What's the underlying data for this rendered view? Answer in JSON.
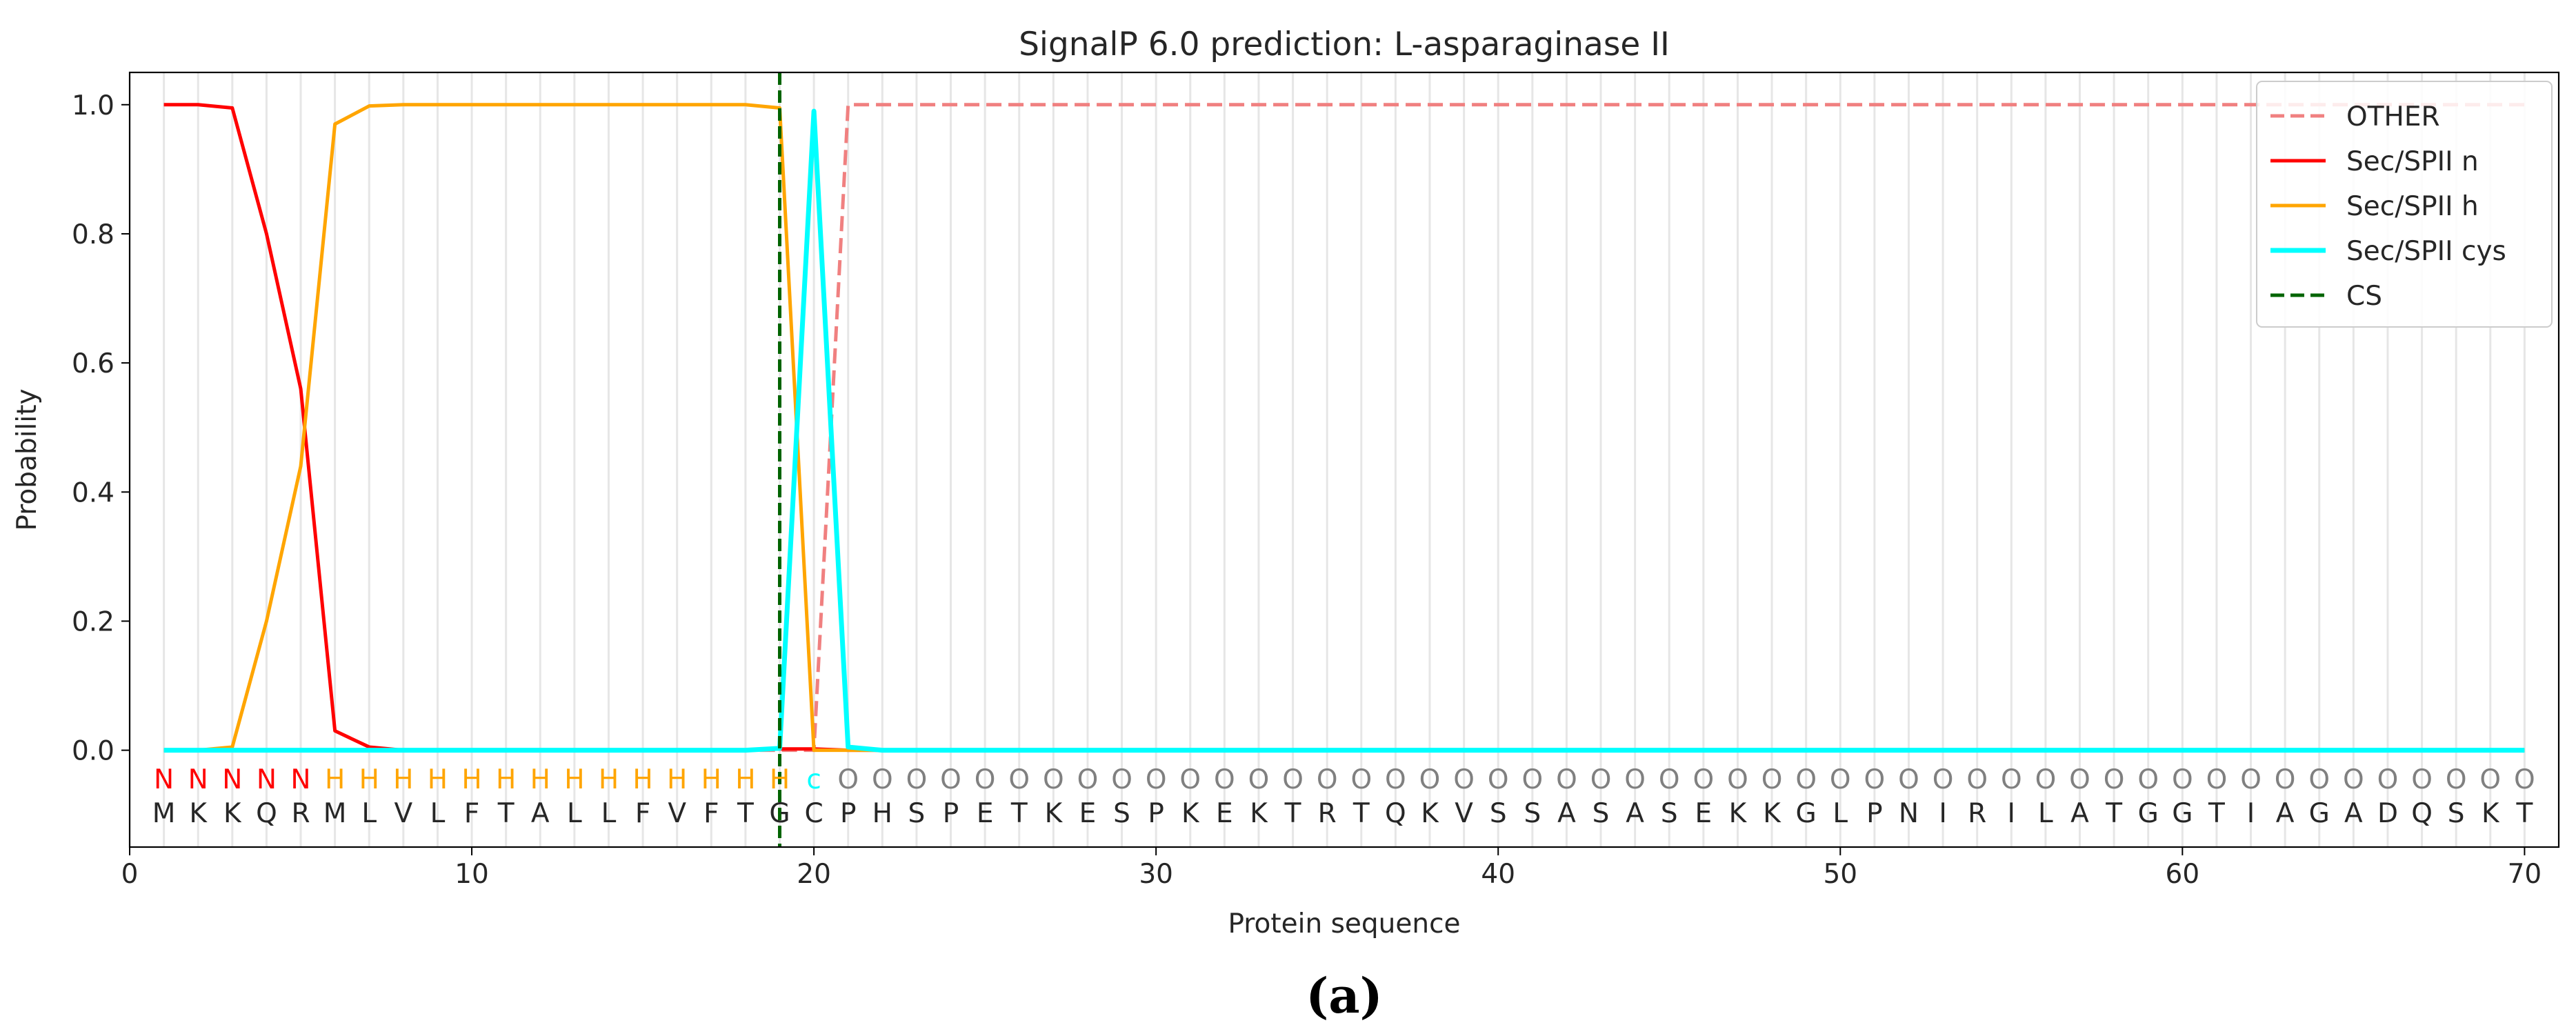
{
  "caption": "(a)",
  "colors": {
    "other": "#f08080",
    "n": "#ff0000",
    "h": "#ffa500",
    "cys": "#00ffff",
    "cs": "#006400",
    "seq_gray": "#808080",
    "text": "#262626"
  },
  "chart_data": {
    "type": "line",
    "title": "SignalP 6.0 prediction: L-asparaginase II",
    "xlabel": "Protein sequence",
    "ylabel": "Probability",
    "xlim": [
      0,
      71
    ],
    "ylim": [
      -0.15,
      1.05
    ],
    "xticks": [
      0,
      10,
      20,
      30,
      40,
      50,
      60,
      70
    ],
    "yticks": [
      0.0,
      0.2,
      0.4,
      0.6,
      0.8,
      1.0
    ],
    "xtick_labels": [
      "0",
      "10",
      "20",
      "30",
      "40",
      "50",
      "60",
      "70"
    ],
    "ytick_labels": [
      "0.0",
      "0.2",
      "0.4",
      "0.6",
      "0.8",
      "1.0"
    ],
    "vertical_grid": true,
    "legend_position": "top-right",
    "sequence": "MKKQRMLVLFTALLFVFTGCPHSPETKESPKEKTRTQKVSSASASEKKGLPNIRILATGGTIAGADQSKT",
    "region_labels": "NNNNNHHHHHHHHHHHHHHcOOOOOOOOOOOOOOOOOOOOOOOOOOOOOOOOOOOOOOOOOOOOOOOOOO",
    "cleavage_site": 19,
    "series": [
      {
        "name": "OTHER",
        "color": "#f08080",
        "dashed": true,
        "x": [
          1,
          2,
          3,
          4,
          5,
          6,
          7,
          8,
          9,
          10,
          11,
          12,
          13,
          14,
          15,
          16,
          17,
          18,
          19,
          20,
          21,
          22,
          70
        ],
        "y": [
          0,
          0,
          0,
          0,
          0,
          0,
          0,
          0,
          0,
          0,
          0,
          0,
          0,
          0,
          0,
          0,
          0,
          0,
          0,
          0,
          1,
          1,
          1
        ]
      },
      {
        "name": "Sec/SPII n",
        "color": "#ff0000",
        "dashed": false,
        "x": [
          1,
          2,
          3,
          4,
          5,
          6,
          7,
          8,
          18,
          19,
          20,
          21,
          70
        ],
        "y": [
          1,
          1,
          0.995,
          0.8,
          0.56,
          0.03,
          0.005,
          0,
          0,
          0.002,
          0.002,
          0,
          0
        ]
      },
      {
        "name": "Sec/SPII h",
        "color": "#ffa500",
        "dashed": false,
        "x": [
          1,
          2,
          3,
          4,
          5,
          6,
          7,
          8,
          9,
          10,
          11,
          12,
          13,
          14,
          15,
          16,
          17,
          18,
          19,
          20,
          21,
          70
        ],
        "y": [
          0,
          0,
          0.005,
          0.2,
          0.44,
          0.97,
          0.998,
          1,
          1,
          1,
          1,
          1,
          1,
          1,
          1,
          1,
          1,
          1,
          0.995,
          0,
          0,
          0
        ]
      },
      {
        "name": "Sec/SPII cys",
        "color": "#00ffff",
        "dashed": false,
        "x": [
          1,
          2,
          18,
          19,
          20,
          21,
          22,
          70
        ],
        "y": [
          0,
          0,
          0,
          0.003,
          0.99,
          0.005,
          0,
          0
        ]
      }
    ],
    "vline": {
      "name": "CS",
      "x": 19,
      "color": "#006400",
      "dashed": true
    }
  }
}
